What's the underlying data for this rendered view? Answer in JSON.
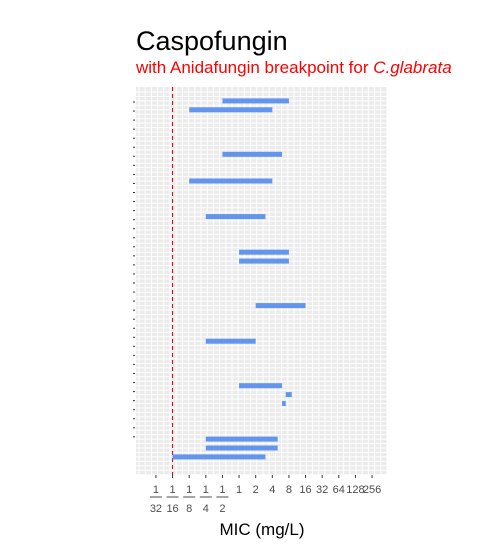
{
  "chart_data": {
    "type": "range-bar",
    "title": "Caspofungin",
    "subtitle": {
      "text": "with Anidafungin breakpoint for ",
      "italic_text": "C.glabrata"
    },
    "xlabel": "MIC (mg/L)",
    "x_scale": "log2",
    "x_ticks": [
      {
        "value": 0.03125,
        "num": "1",
        "den": "32"
      },
      {
        "value": 0.0625,
        "num": "1",
        "den": "16"
      },
      {
        "value": 0.125,
        "num": "1",
        "den": "8"
      },
      {
        "value": 0.25,
        "num": "1",
        "den": "4"
      },
      {
        "value": 0.5,
        "num": "1",
        "den": "2"
      },
      {
        "value": 1,
        "label": "1"
      },
      {
        "value": 2,
        "label": "2"
      },
      {
        "value": 4,
        "label": "4"
      },
      {
        "value": 8,
        "label": "8"
      },
      {
        "value": 16,
        "label": "16"
      },
      {
        "value": 32,
        "label": "32"
      },
      {
        "value": 64,
        "label": "64"
      },
      {
        "value": 128,
        "label": "128"
      },
      {
        "value": 256,
        "label": "256"
      }
    ],
    "xlim_log2": [
      -6.2,
      8.9
    ],
    "breakpoint": 0.0625,
    "row_count": 38,
    "grid": true,
    "ranges": [
      {
        "row": 1,
        "low": 0.5,
        "high": 8
      },
      {
        "row": 2,
        "low": 0.125,
        "high": 4
      },
      {
        "row": 7,
        "low": 0.5,
        "high": 6
      },
      {
        "row": 10,
        "low": 0.125,
        "high": 4
      },
      {
        "row": 14,
        "low": 0.25,
        "high": 3
      },
      {
        "row": 18,
        "low": 1,
        "high": 8
      },
      {
        "row": 19,
        "low": 1,
        "high": 8
      },
      {
        "row": 24,
        "low": 2,
        "high": 16
      },
      {
        "row": 28,
        "low": 0.25,
        "high": 2
      },
      {
        "row": 33,
        "low": 1,
        "high": 6
      },
      {
        "row": 34,
        "low": 7,
        "high": 9
      },
      {
        "row": 35,
        "low": 6,
        "high": 7
      },
      {
        "row": 39,
        "low": 0.25,
        "high": 5
      },
      {
        "row": 40,
        "low": 0.25,
        "high": 5
      },
      {
        "row": 41,
        "low": 0.0625,
        "high": 3
      }
    ],
    "colors": {
      "bar": "#6495ed",
      "panel": "#ebebeb",
      "grid": "#ffffff",
      "breakpoint": "#cc0000",
      "title": "#000000",
      "subtitle": "#ff0000"
    }
  }
}
